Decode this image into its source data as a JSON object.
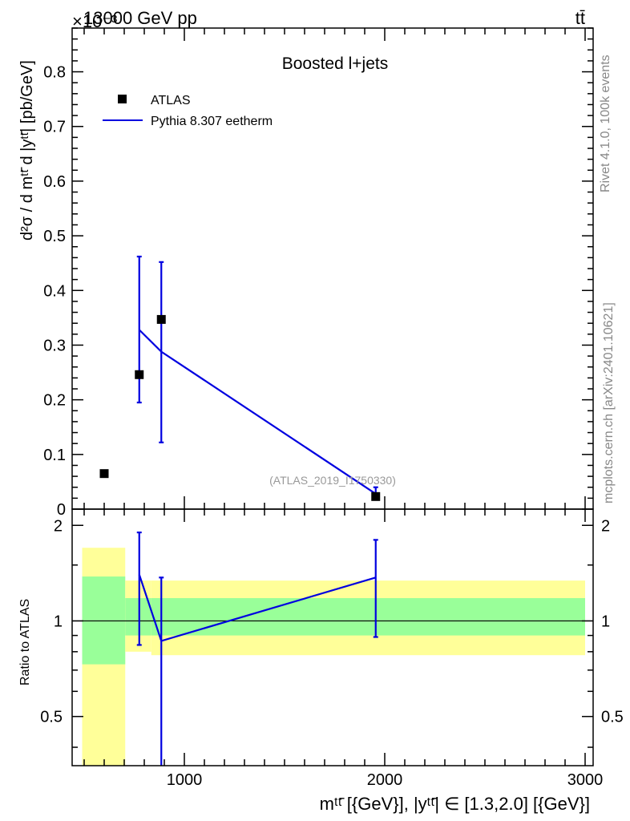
{
  "header": {
    "energy_label": "13000 GeV pp",
    "process_label": "tt̄",
    "exponent_label": "×10⁻³"
  },
  "side": {
    "rivet_label": "Rivet 4.1.0,  100k events",
    "mcplots_label": "mcplots.cern.ch [arXiv:2401.10621]"
  },
  "chart_data": [
    {
      "type": "scatter",
      "title": "Boosted l+jets",
      "ylabel": "d²σ / d mᵗᵗ̄ d |yᵗᵗ̄| [pb/GeV]",
      "analysis_label": "(ATLAS_2019_I1750330)",
      "xlim": [
        440,
        3040
      ],
      "ylim": [
        0,
        0.88
      ],
      "y_ticks": [
        0,
        0.1,
        0.2,
        0.3,
        0.4,
        0.5,
        0.6,
        0.7,
        0.8
      ],
      "y_tick_labels": [
        "0",
        "0.1",
        "0.2",
        "0.3",
        "0.4",
        "0.5",
        "0.6",
        "0.7",
        "0.8"
      ],
      "legend_position": "top-left",
      "series": [
        {
          "name": "ATLAS",
          "kind": "points",
          "color": "#000000",
          "x": [
            600,
            775,
            885,
            1955
          ],
          "y": [
            0.065,
            0.246,
            0.347,
            0.023
          ]
        },
        {
          "name": "Pythia 8.307 eetherm",
          "kind": "line",
          "color": "#0000e0",
          "x": [
            775,
            885,
            1955
          ],
          "y": [
            0.328,
            0.288,
            0.028
          ],
          "y_low": [
            0.195,
            0.122,
            0.018
          ],
          "y_high": [
            0.462,
            0.452,
            0.04
          ]
        }
      ]
    },
    {
      "type": "line",
      "ylabel": "Ratio to ATLAS",
      "xlabel": "mᵗᵗ̄ [{GeV}], |yᵗᵗ̄| ∈ [1.3,2.0] [{GeV}]",
      "xlim": [
        440,
        3040
      ],
      "ylim": [
        0.35,
        2.25
      ],
      "log_y": true,
      "x_ticks": [
        1000,
        2000,
        3000
      ],
      "x_tick_labels": [
        "1000",
        "2000",
        "3000"
      ],
      "y_ticks": [
        0.5,
        1,
        2
      ],
      "y_tick_labels": [
        "0.5",
        "1",
        "2"
      ],
      "reference_line": 1,
      "bands": {
        "outer_color": "#ffff99",
        "inner_color": "#99ff99",
        "bins": [
          {
            "x0": 490,
            "x1": 705,
            "outer": [
              0.35,
              1.7
            ],
            "inner": [
              0.73,
              1.38
            ]
          },
          {
            "x0": 705,
            "x1": 835,
            "outer": [
              0.8,
              1.34
            ],
            "inner": [
              0.9,
              1.18
            ]
          },
          {
            "x0": 835,
            "x1": 3000,
            "outer": [
              0.78,
              1.34
            ],
            "inner": [
              0.9,
              1.18
            ]
          }
        ]
      },
      "series": [
        {
          "name": "Pythia 8.307 eetherm",
          "color": "#0000e0",
          "x": [
            775,
            885,
            1955
          ],
          "y": [
            1.4,
            0.865,
            1.37
          ],
          "y_low": [
            0.84,
            0.35,
            0.89
          ],
          "y_high": [
            1.9,
            1.37,
            1.8
          ]
        }
      ]
    }
  ]
}
